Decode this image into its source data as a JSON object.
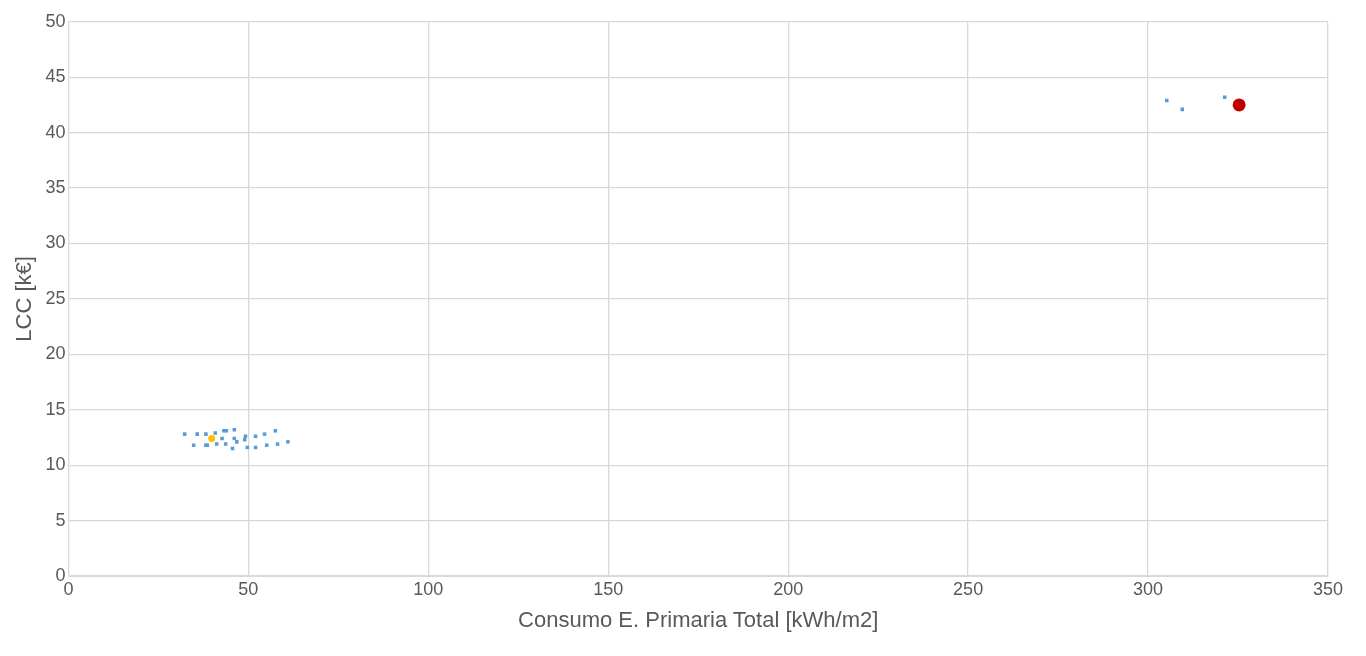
{
  "chart_data": {
    "type": "scatter",
    "xlabel": "Consumo E. Primaria Total [kWh/m2]",
    "ylabel": "LCC [k€]",
    "xlim": [
      0,
      350
    ],
    "xticks": [
      0,
      50,
      100,
      150,
      200,
      250,
      300,
      350
    ],
    "ylim": [
      0,
      50
    ],
    "yticks": [
      0,
      5,
      10,
      15,
      20,
      25,
      30,
      35,
      40,
      45,
      50
    ],
    "grid": true,
    "legend": false,
    "series": [
      {
        "color": "#5b9bd5",
        "marker": "square",
        "x": [
          32.3,
          35.8,
          38.2,
          40.8,
          43.2,
          43.9,
          46.1,
          49.2,
          52.0,
          54.5,
          57.5,
          34.8,
          38.2,
          38.6,
          41.2,
          42.7,
          43.7,
          46.1,
          46.8,
          45.6,
          49.0,
          49.7,
          52.0,
          55.1,
          58.1,
          61.0,
          305.2,
          309.5,
          321.3
        ],
        "values": [
          12.8,
          12.8,
          12.8,
          12.9,
          13.1,
          13.1,
          13.2,
          12.6,
          12.6,
          12.8,
          13.1,
          11.8,
          11.8,
          11.8,
          11.9,
          12.4,
          11.9,
          12.4,
          12.1,
          11.5,
          12.3,
          11.6,
          11.6,
          11.8,
          11.9,
          12.1,
          42.9,
          42.1,
          43.2
        ]
      },
      {
        "color": "#ffc000",
        "marker": "circle",
        "x": [
          39.8
        ],
        "values": [
          12.4
        ]
      },
      {
        "color": "#c00000",
        "marker": "circle",
        "x": [
          325.3
        ],
        "values": [
          42.5
        ]
      }
    ]
  }
}
